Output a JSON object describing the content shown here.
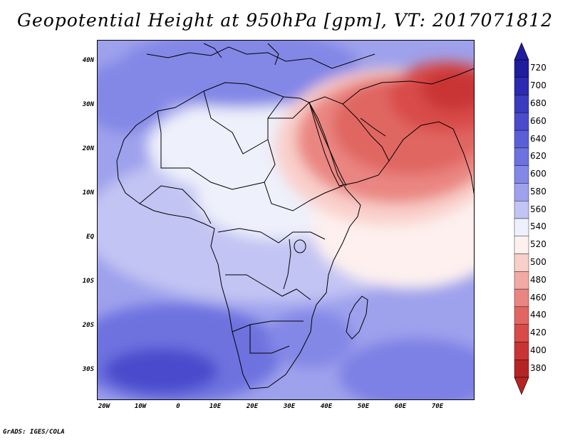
{
  "title": "Geopotential Height at 950hPa [gpm], VT: 2017071812",
  "credit": "GrADS: IGES/COLA",
  "y_axis_labels": [
    "40N",
    "30N",
    "20N",
    "10N",
    "EQ",
    "10S",
    "20S",
    "30S"
  ],
  "x_axis_labels": [
    "20W",
    "10W",
    "0",
    "10E",
    "20E",
    "30E",
    "40E",
    "50E",
    "60E",
    "70E"
  ],
  "colorbar": {
    "labels": [
      "720",
      "700",
      "680",
      "660",
      "640",
      "620",
      "600",
      "580",
      "560",
      "540",
      "520",
      "500",
      "480",
      "460",
      "440",
      "420",
      "400",
      "380"
    ],
    "colors": [
      "#1f1c9e",
      "#2c2ab0",
      "#3b3bbf",
      "#4a4ccc",
      "#5b5fd7",
      "#6d72df",
      "#8387e6",
      "#9ea1ec",
      "#c2c4f3",
      "#eef0fb",
      "#fdf0ee",
      "#f9cfca",
      "#f2aaa5",
      "#ea8682",
      "#e06662",
      "#d84b48",
      "#c93434",
      "#b52424"
    ]
  },
  "regions": [
    {
      "name": "arabia-india-low",
      "level": "420"
    },
    {
      "name": "sahara-north",
      "level": "580"
    },
    {
      "name": "south-atlantic-high",
      "level": "680"
    },
    {
      "name": "indian-ocean-high",
      "level": "660"
    }
  ]
}
